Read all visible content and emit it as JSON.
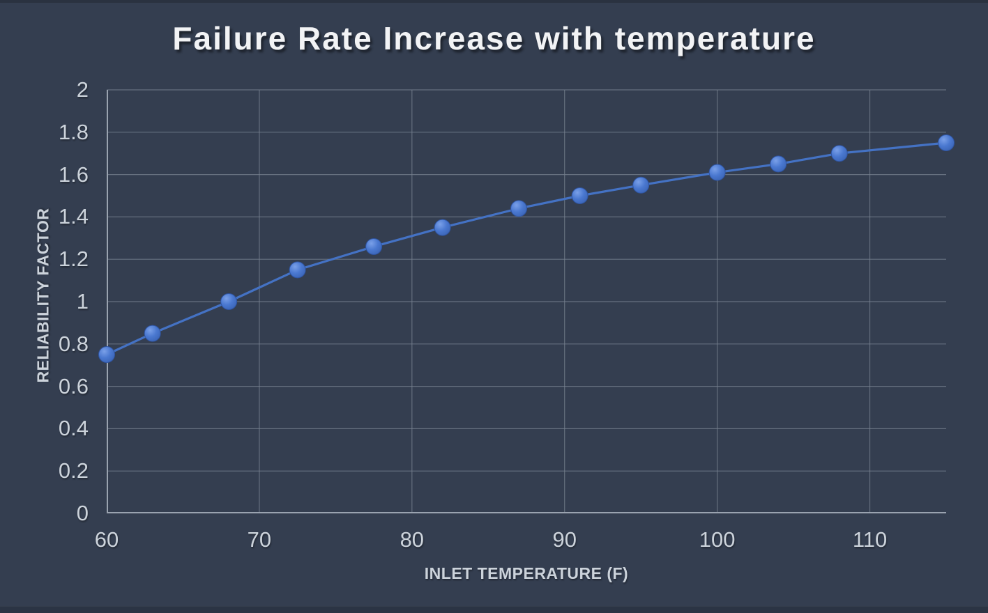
{
  "title": "Failure Rate Increase with temperature",
  "colors": {
    "background": "#343e50",
    "edge_strip": "#2a3240",
    "gridline": "#77818f",
    "axis_line": "#9aa3b0",
    "series_line": "#4472c4",
    "marker_fill": "#4a78d0",
    "marker_highlight": "#7aa0e8",
    "marker_edge": "#2f55a3",
    "title_text": "#f2f3f5",
    "tick_text": "#ccd3db",
    "axis_title_text": "#ccd3db"
  },
  "chart_data": {
    "type": "line",
    "title": "Failure Rate Increase with temperature",
    "xlabel": "INLET TEMPERATURE (F)",
    "ylabel": "RELIABILITY FACTOR",
    "x": [
      60,
      63,
      68,
      72.5,
      77.5,
      82,
      87,
      91,
      95,
      100,
      104,
      108,
      115
    ],
    "y": [
      0.75,
      0.85,
      1.0,
      1.15,
      1.26,
      1.35,
      1.44,
      1.5,
      1.55,
      1.61,
      1.65,
      1.7,
      1.75
    ],
    "xlim": [
      60,
      115
    ],
    "ylim": [
      0,
      2
    ],
    "x_ticks": [
      60,
      70,
      80,
      90,
      100,
      110
    ],
    "x_tick_labels": [
      "60",
      "70",
      "80",
      "90",
      "100",
      "110"
    ],
    "y_ticks": [
      0,
      0.2,
      0.4,
      0.6,
      0.8,
      1,
      1.2,
      1.4,
      1.6,
      1.8,
      2
    ],
    "y_tick_labels": [
      "0",
      "0.2",
      "0.4",
      "0.6",
      "0.8",
      "1",
      "1.2",
      "1.4",
      "1.6",
      "1.8",
      "2"
    ],
    "grid": true,
    "legend": "none",
    "marker": "circle"
  }
}
